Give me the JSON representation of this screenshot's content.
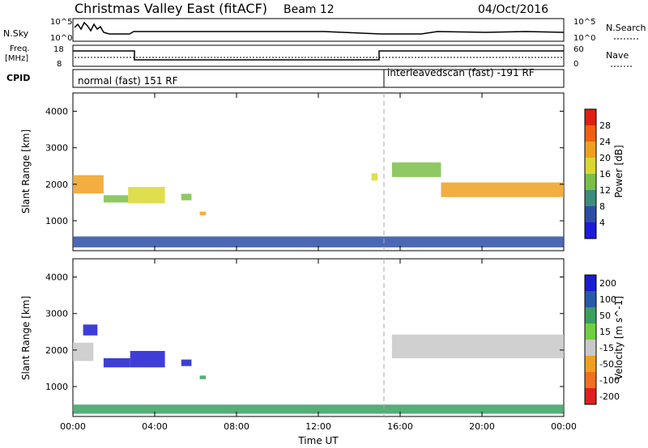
{
  "header": {
    "title": "Christmas Valley East (fitACF)",
    "beam": "Beam 12",
    "date": "04/Oct/2016"
  },
  "panels": {
    "nsky": {
      "label": "N.Sky",
      "ytick_top": "10^5",
      "ytick_bottom": "10^0",
      "right_label": "N.Search",
      "right_tick_top": "10^5",
      "right_tick_bottom": "10^0"
    },
    "freq": {
      "label_line1": "Freq.",
      "label_line2": "[MHz]",
      "ytick_top": "18",
      "ytick_bottom": "8",
      "right_label": "Nave",
      "right_tick_top": "60",
      "right_tick_bottom": "0"
    },
    "cpid": {
      "label": "CPID",
      "left_text": "normal (fast) 151 RF",
      "right_text": "interleavedscan (fast) -191 RF"
    }
  },
  "colors": {
    "power": [
      "#1c1cdc",
      "#2e4ea6",
      "#3b8e7c",
      "#7ac048",
      "#d8d830",
      "#f0a020",
      "#f06010",
      "#e02010"
    ],
    "velocity": [
      "#1c1ccf",
      "#285aaa",
      "#38a060",
      "#70d040",
      "#c8c8c8",
      "#f0a020",
      "#f07020",
      "#e02020"
    ]
  },
  "chart_data": [
    {
      "type": "heatmap",
      "name": "power",
      "xlabel": "Time UT",
      "ylabel": "Slant Range [km]",
      "xlim": [
        0,
        24
      ],
      "ylim": [
        180,
        4500
      ],
      "x_ticks": [
        "00:00",
        "04:00",
        "08:00",
        "12:00",
        "16:00",
        "20:00",
        "00:00"
      ],
      "y_ticks": [
        1000,
        2000,
        3000,
        4000
      ],
      "colorbar": {
        "label": "Power [dB]",
        "ticks": [
          "4",
          "8",
          "12",
          "16",
          "20",
          "24",
          "28"
        ]
      },
      "echo_regions": [
        {
          "t_start": 0.0,
          "t_end": 1.5,
          "r_center": 2000,
          "r_width": 500,
          "level": 0.75
        },
        {
          "t_start": 1.5,
          "t_end": 2.7,
          "r_center": 1600,
          "r_width": 200,
          "level": 0.45
        },
        {
          "t_start": 2.7,
          "t_end": 4.5,
          "r_center": 1700,
          "r_width": 450,
          "level": 0.6
        },
        {
          "t_start": 5.3,
          "t_end": 5.8,
          "r_center": 1650,
          "r_width": 180,
          "level": 0.4
        },
        {
          "t_start": 6.2,
          "t_end": 6.5,
          "r_center": 1200,
          "r_width": 100,
          "level": 0.65
        },
        {
          "t_start": 14.6,
          "t_end": 14.9,
          "r_center": 2200,
          "r_width": 200,
          "level": 0.6
        },
        {
          "t_start": 15.6,
          "t_end": 18.0,
          "r_center": 2400,
          "r_width": 400,
          "level": 0.45
        },
        {
          "t_start": 18.0,
          "t_end": 24.0,
          "r_center": 1850,
          "r_width": 400,
          "level": 0.7
        },
        {
          "t_start": 0.0,
          "t_end": 24.0,
          "r_center": 420,
          "r_width": 300,
          "level": 0.2
        }
      ]
    },
    {
      "type": "heatmap",
      "name": "velocity",
      "xlabel": "Time UT",
      "ylabel": "Slant Range [km]",
      "xlim": [
        0,
        24
      ],
      "ylim": [
        180,
        4500
      ],
      "x_ticks": [
        "00:00",
        "04:00",
        "08:00",
        "12:00",
        "16:00",
        "20:00",
        "00:00"
      ],
      "y_ticks": [
        1000,
        2000,
        3000,
        4000
      ],
      "colorbar": {
        "label": "Velocity [m s^-1]",
        "ticks": [
          "200",
          "100",
          "50",
          "15",
          "-15",
          "-50",
          "-100",
          "-200"
        ]
      },
      "echo_regions": [
        {
          "t_start": 0.0,
          "t_end": 1.0,
          "r_center": 1950,
          "r_width": 500,
          "level": 0.5
        },
        {
          "t_start": 0.5,
          "t_end": 1.2,
          "r_center": 2550,
          "r_width": 300,
          "level": 0.0
        },
        {
          "t_start": 1.5,
          "t_end": 2.8,
          "r_center": 1650,
          "r_width": 250,
          "level": 0.0
        },
        {
          "t_start": 2.8,
          "t_end": 4.5,
          "r_center": 1750,
          "r_width": 450,
          "level": 0.0
        },
        {
          "t_start": 5.3,
          "t_end": 5.8,
          "r_center": 1650,
          "r_width": 180,
          "level": 0.0
        },
        {
          "t_start": 6.2,
          "t_end": 6.5,
          "r_center": 1250,
          "r_width": 100,
          "level": 0.3
        },
        {
          "t_start": 15.6,
          "t_end": 24.0,
          "r_center": 2100,
          "r_width": 650,
          "level": 0.5
        },
        {
          "t_start": 0.0,
          "t_end": 24.0,
          "r_center": 380,
          "r_width": 250,
          "level": 0.35
        }
      ]
    }
  ]
}
